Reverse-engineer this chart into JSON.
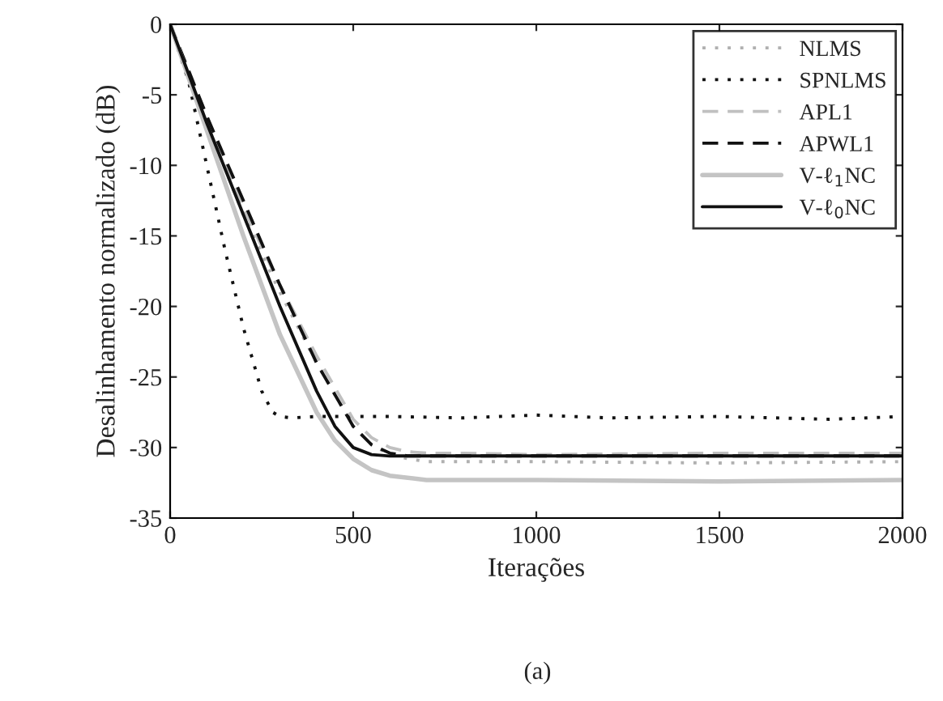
{
  "chart_data": {
    "type": "line",
    "xlabel": "Iterações",
    "ylabel": "Desalinhamento normalizado (dB)",
    "annotations": [
      "(a)"
    ],
    "xlim": [
      0,
      2000
    ],
    "ylim": [
      -35,
      0
    ],
    "xticks": [
      0,
      500,
      1000,
      1500,
      2000
    ],
    "yticks": [
      0,
      -5,
      -10,
      -15,
      -20,
      -25,
      -30,
      -35
    ],
    "grid": false,
    "legend": "top right",
    "series": [
      {
        "name": "NLMS",
        "color": "#b0b0b0",
        "line_style": "dotted",
        "x": [
          0,
          100,
          200,
          300,
          400,
          500,
          550,
          600,
          650,
          700,
          800,
          1000,
          1500,
          2000
        ],
        "values": [
          0,
          -7,
          -13.5,
          -19,
          -24,
          -28.5,
          -29.8,
          -30.5,
          -30.8,
          -31,
          -31,
          -31,
          -31.1,
          -31
        ]
      },
      {
        "name": "SPNLMS",
        "color": "#111111",
        "line_style": "dotted",
        "x": [
          0,
          50,
          100,
          150,
          200,
          250,
          280,
          300,
          330,
          400,
          600,
          800,
          1000,
          1200,
          1500,
          1800,
          2000
        ],
        "values": [
          0,
          -4,
          -10,
          -16,
          -21.5,
          -26,
          -27.5,
          -27.8,
          -27.9,
          -27.8,
          -27.8,
          -27.9,
          -27.7,
          -27.9,
          -27.8,
          -28,
          -27.8
        ]
      },
      {
        "name": "APL1",
        "color": "#c0c0c0",
        "line_style": "dashed",
        "x": [
          0,
          100,
          200,
          300,
          400,
          500,
          550,
          600,
          650,
          700,
          800,
          1000,
          1500,
          2000
        ],
        "values": [
          0,
          -6.5,
          -13,
          -18.5,
          -23.5,
          -28,
          -29.3,
          -30,
          -30.3,
          -30.4,
          -30.4,
          -30.5,
          -30.4,
          -30.4
        ]
      },
      {
        "name": "APWL1",
        "color": "#111111",
        "line_style": "dashed",
        "x": [
          0,
          100,
          200,
          300,
          400,
          500,
          550,
          600,
          650,
          700,
          800,
          1000,
          1500,
          2000
        ],
        "values": [
          0,
          -6.5,
          -12.5,
          -18.5,
          -24,
          -28.5,
          -29.8,
          -30.4,
          -30.6,
          -30.6,
          -30.6,
          -30.6,
          -30.6,
          -30.6
        ]
      },
      {
        "name": "V-ℓ$_{1}$NC",
        "color": "#c4c4c4",
        "line_style": "solid",
        "x": [
          0,
          100,
          200,
          300,
          400,
          450,
          500,
          550,
          600,
          700,
          800,
          1000,
          1500,
          2000
        ],
        "values": [
          0,
          -7.5,
          -15,
          -22,
          -27.5,
          -29.5,
          -30.8,
          -31.6,
          -32,
          -32.3,
          -32.3,
          -32.3,
          -32.4,
          -32.3
        ]
      },
      {
        "name": "V-ℓ$_{0}$NC",
        "color": "#111111",
        "line_style": "solid",
        "x": [
          0,
          100,
          200,
          300,
          400,
          450,
          500,
          550,
          600,
          700,
          800,
          1000,
          1500,
          2000
        ],
        "values": [
          0,
          -7,
          -13.5,
          -20,
          -26,
          -28.5,
          -30,
          -30.5,
          -30.6,
          -30.6,
          -30.6,
          -30.6,
          -30.6,
          -30.6
        ]
      }
    ]
  }
}
